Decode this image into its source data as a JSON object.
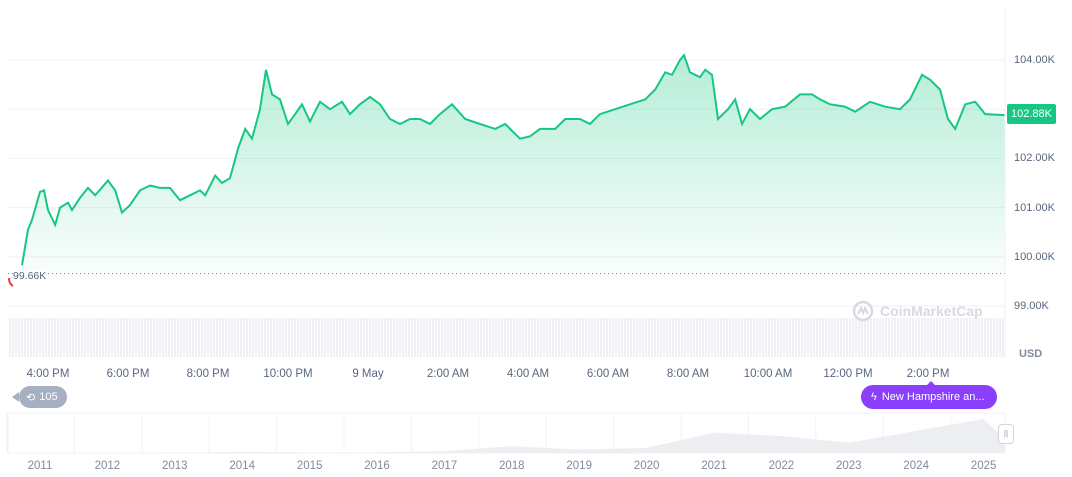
{
  "chart_data": {
    "type": "area",
    "title": "",
    "currency_label": "USD",
    "x_unit": "hours since 4:00 PM",
    "x_tick_labels": [
      "4:00 PM",
      "6:00 PM",
      "8:00 PM",
      "10:00 PM",
      "9 May",
      "2:00 AM",
      "4:00 AM",
      "6:00 AM",
      "8:00 AM",
      "10:00 AM",
      "12:00 PM",
      "2:00 PM"
    ],
    "y_tick_labels": [
      "104.00K",
      "103.00K",
      "102.00K",
      "101.00K",
      "100.00K",
      "99.00K"
    ],
    "y_ticks": [
      104,
      103,
      102,
      101,
      100,
      99
    ],
    "ylim": [
      98.9,
      104.2
    ],
    "y_unit": "K USD",
    "current_price_label": "102.88K",
    "open_price_label": "99.66K",
    "open_price": 99.66,
    "series": [
      {
        "name": "price",
        "color": "#16c784",
        "points": [
          [
            -0.65,
            99.83
          ],
          [
            -0.5,
            100.55
          ],
          [
            -0.4,
            100.75
          ],
          [
            -0.2,
            101.32
          ],
          [
            -0.1,
            101.35
          ],
          [
            0,
            100.95
          ],
          [
            0.18,
            100.65
          ],
          [
            0.3,
            101.0
          ],
          [
            0.5,
            101.1
          ],
          [
            0.6,
            100.95
          ],
          [
            0.8,
            101.2
          ],
          [
            1.0,
            101.4
          ],
          [
            1.18,
            101.25
          ],
          [
            1.5,
            101.55
          ],
          [
            1.68,
            101.35
          ],
          [
            1.85,
            100.9
          ],
          [
            2.05,
            101.05
          ],
          [
            2.3,
            101.35
          ],
          [
            2.55,
            101.45
          ],
          [
            2.8,
            101.4
          ],
          [
            3.05,
            101.4
          ],
          [
            3.3,
            101.15
          ],
          [
            3.55,
            101.25
          ],
          [
            3.8,
            101.35
          ],
          [
            3.93,
            101.25
          ],
          [
            4.18,
            101.65
          ],
          [
            4.35,
            101.5
          ],
          [
            4.55,
            101.6
          ],
          [
            4.75,
            102.2
          ],
          [
            4.93,
            102.6
          ],
          [
            5.1,
            102.4
          ],
          [
            5.3,
            103.0
          ],
          [
            5.45,
            103.8
          ],
          [
            5.6,
            103.3
          ],
          [
            5.8,
            103.2
          ],
          [
            6.0,
            102.7
          ],
          [
            6.18,
            102.9
          ],
          [
            6.35,
            103.1
          ],
          [
            6.55,
            102.75
          ],
          [
            6.8,
            103.15
          ],
          [
            7.05,
            103.0
          ],
          [
            7.35,
            103.15
          ],
          [
            7.55,
            102.9
          ],
          [
            7.8,
            103.1
          ],
          [
            8.05,
            103.25
          ],
          [
            8.3,
            103.1
          ],
          [
            8.55,
            102.8
          ],
          [
            8.8,
            102.7
          ],
          [
            9.05,
            102.8
          ],
          [
            9.3,
            102.8
          ],
          [
            9.55,
            102.7
          ],
          [
            9.8,
            102.9
          ],
          [
            10.1,
            103.1
          ],
          [
            10.43,
            102.8
          ],
          [
            10.8,
            102.7
          ],
          [
            11.18,
            102.6
          ],
          [
            11.43,
            102.7
          ],
          [
            11.8,
            102.4
          ],
          [
            12.05,
            102.45
          ],
          [
            12.3,
            102.6
          ],
          [
            12.68,
            102.6
          ],
          [
            12.93,
            102.8
          ],
          [
            13.3,
            102.8
          ],
          [
            13.55,
            102.7
          ],
          [
            13.8,
            102.9
          ],
          [
            14.18,
            103.0
          ],
          [
            14.55,
            103.1
          ],
          [
            14.93,
            103.2
          ],
          [
            15.18,
            103.4
          ],
          [
            15.43,
            103.75
          ],
          [
            15.6,
            103.7
          ],
          [
            15.8,
            104.0
          ],
          [
            15.9,
            104.1
          ],
          [
            16.05,
            103.75
          ],
          [
            16.3,
            103.65
          ],
          [
            16.43,
            103.8
          ],
          [
            16.6,
            103.7
          ],
          [
            16.75,
            102.8
          ],
          [
            17.0,
            103.0
          ],
          [
            17.18,
            103.2
          ],
          [
            17.35,
            102.7
          ],
          [
            17.55,
            103.0
          ],
          [
            17.8,
            102.8
          ],
          [
            18.1,
            103.0
          ],
          [
            18.43,
            103.05
          ],
          [
            18.8,
            103.3
          ],
          [
            19.1,
            103.3
          ],
          [
            19.3,
            103.2
          ],
          [
            19.55,
            103.1
          ],
          [
            19.93,
            103.05
          ],
          [
            20.18,
            102.95
          ],
          [
            20.55,
            103.15
          ],
          [
            20.93,
            103.05
          ],
          [
            21.3,
            103.0
          ],
          [
            21.55,
            103.2
          ],
          [
            21.85,
            103.7
          ],
          [
            22.05,
            103.6
          ],
          [
            22.3,
            103.4
          ],
          [
            22.5,
            102.8
          ],
          [
            22.68,
            102.6
          ],
          [
            22.93,
            103.1
          ],
          [
            23.18,
            103.15
          ],
          [
            23.43,
            102.9
          ],
          [
            23.93,
            102.88
          ]
        ]
      }
    ],
    "navigator": {
      "year_labels": [
        "2011",
        "2012",
        "2013",
        "2014",
        "2015",
        "2016",
        "2017",
        "2018",
        "2019",
        "2020",
        "2021",
        "2022",
        "2023",
        "2024",
        "2025"
      ],
      "relative_values": [
        0,
        0,
        0.01,
        0.03,
        0.02,
        0.02,
        0.05,
        0.2,
        0.1,
        0.15,
        0.6,
        0.5,
        0.3,
        0.65,
        1.0
      ]
    }
  },
  "history_badge": {
    "icon": "history-icon",
    "count": "105"
  },
  "news_badge": {
    "icon": "lightning-icon",
    "text": "New Hampshire an..."
  },
  "watermark": "CoinMarketCap",
  "colors": {
    "up": "#16c784",
    "down": "#ea3943",
    "news": "#8a3ffc"
  }
}
